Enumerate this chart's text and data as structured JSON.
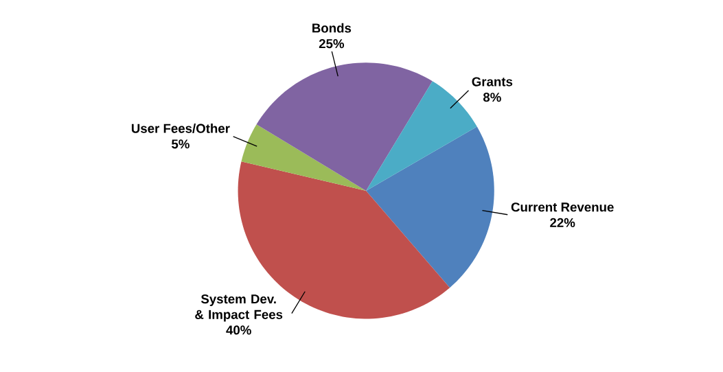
{
  "chart_data": {
    "type": "pie",
    "categories": [
      "Current Revenue",
      "System Dev. & Impact Fees",
      "User Fees/Other",
      "Bonds",
      "Grants"
    ],
    "values": [
      22,
      40,
      5,
      25,
      8
    ],
    "value_labels": [
      "22%",
      "40%",
      "5%",
      "25%",
      "8%"
    ],
    "colors": [
      "#4f81bd",
      "#c0504d",
      "#9bbb59",
      "#8064a2",
      "#4bacc6"
    ]
  }
}
